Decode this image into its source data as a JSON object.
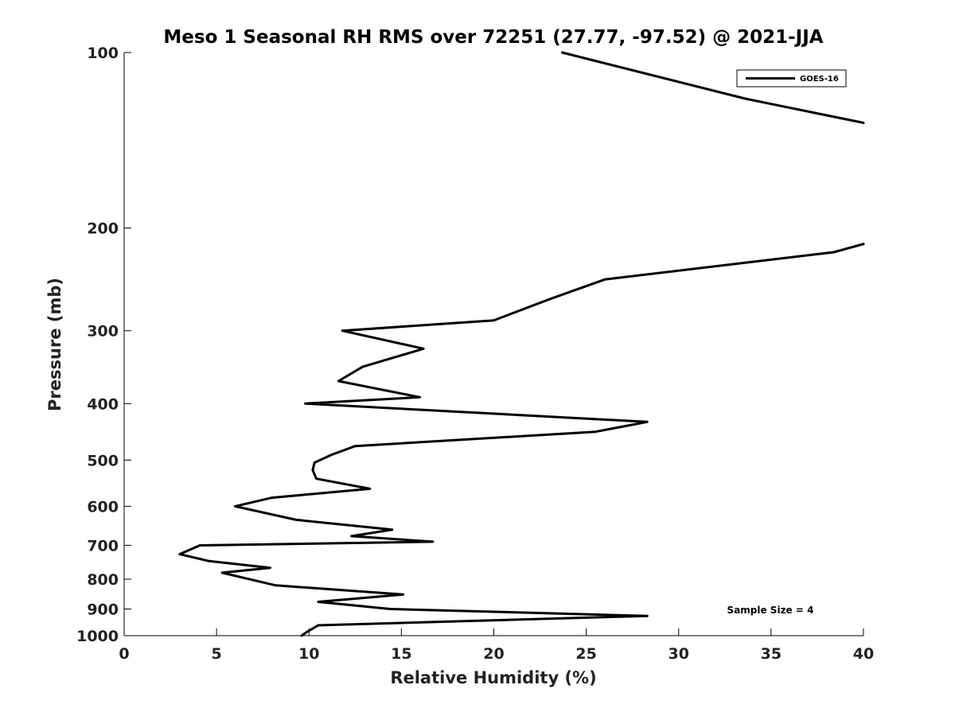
{
  "chart_data": {
    "type": "line",
    "title": "Meso 1 Seasonal RH RMS over 72251 (27.77, -97.52) @ 2021-JJA",
    "xlabel": "Relative Humidity (%)",
    "ylabel": "Pressure (mb)",
    "xlim": [
      0,
      40
    ],
    "ylim": [
      100,
      1000
    ],
    "yscale": "log",
    "y_reversed": true,
    "grid": false,
    "xticks": [
      0,
      5,
      10,
      15,
      20,
      25,
      30,
      35,
      40
    ],
    "xtick_labels": [
      "0",
      "5",
      "10",
      "15",
      "20",
      "25",
      "30",
      "35",
      "40"
    ],
    "yticks": [
      100,
      200,
      300,
      400,
      500,
      600,
      700,
      800,
      900,
      1000
    ],
    "ytick_labels": [
      "100",
      "200",
      "300",
      "400",
      "500",
      "600",
      "700",
      "800",
      "900",
      "1000"
    ],
    "legend": {
      "placement": "top-right",
      "entries": [
        "GOES-16"
      ]
    },
    "annotation": "Sample Size = 4",
    "series": [
      {
        "name": "GOES-16",
        "color": "#000000",
        "segments": [
          {
            "x": [
              23.7,
              33.6,
              40.0
            ],
            "y": [
              100,
              120,
              132
            ]
          },
          {
            "x": [
              40.0,
              38.4,
              26.0,
              23.0,
              20.0,
              11.8,
              16.2,
              12.9,
              11.6,
              16.0,
              9.8,
              28.3,
              25.5,
              12.5,
              11.2,
              10.3,
              10.2,
              10.4,
              13.3,
              8.0,
              6.0,
              9.3,
              14.5,
              12.3,
              16.7,
              4.1,
              3.0,
              4.6,
              7.9,
              5.3,
              8.2,
              15.1,
              10.5,
              14.4,
              28.3,
              10.5,
              9.9,
              9.6
            ],
            "y": [
              213,
              220,
              245,
              265,
              288,
              300,
              322,
              346,
              366,
              390,
              400,
              430,
              447,
              473,
              490,
              505,
              520,
              538,
              560,
              580,
              600,
              633,
              658,
              675,
              690,
              700,
              725,
              745,
              765,
              780,
              820,
              850,
              875,
              900,
              925,
              960,
              985,
              1000
            ]
          }
        ]
      }
    ]
  }
}
